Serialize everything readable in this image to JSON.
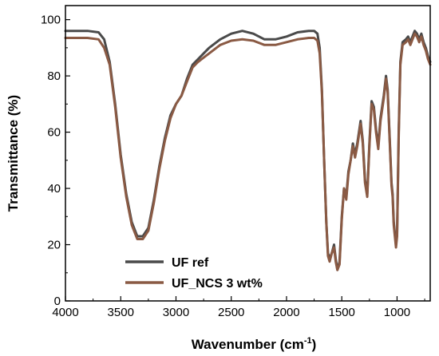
{
  "chart_data": {
    "type": "line",
    "xlabel_main": "Wavenumber (cm",
    "xlabel_sup": "-1",
    "xlabel_close": ")",
    "ylabel": "Transmittance (%)",
    "xlim": [
      4000,
      700
    ],
    "ylim": [
      0,
      105
    ],
    "x_reversed": true,
    "x_ticks": [
      4000,
      3500,
      3000,
      2500,
      2000,
      1500,
      1000
    ],
    "y_ticks": [
      0,
      20,
      40,
      60,
      80,
      100
    ],
    "legend_position": "bottom-left",
    "series": [
      {
        "name": "UF ref",
        "color": "#4a4a4a",
        "points": [
          [
            4000,
            96
          ],
          [
            3800,
            96
          ],
          [
            3700,
            95.5
          ],
          [
            3650,
            93
          ],
          [
            3600,
            85
          ],
          [
            3550,
            70
          ],
          [
            3500,
            52
          ],
          [
            3450,
            38
          ],
          [
            3400,
            28
          ],
          [
            3350,
            23
          ],
          [
            3300,
            23
          ],
          [
            3250,
            26
          ],
          [
            3200,
            36
          ],
          [
            3150,
            48
          ],
          [
            3100,
            58
          ],
          [
            3050,
            66
          ],
          [
            3000,
            70
          ],
          [
            2950,
            73
          ],
          [
            2900,
            79
          ],
          [
            2850,
            84
          ],
          [
            2800,
            86
          ],
          [
            2700,
            90
          ],
          [
            2600,
            93
          ],
          [
            2500,
            95
          ],
          [
            2400,
            96
          ],
          [
            2300,
            95
          ],
          [
            2200,
            93
          ],
          [
            2100,
            93
          ],
          [
            2000,
            94
          ],
          [
            1900,
            95.5
          ],
          [
            1800,
            96
          ],
          [
            1750,
            96
          ],
          [
            1720,
            95
          ],
          [
            1700,
            90
          ],
          [
            1680,
            75
          ],
          [
            1660,
            50
          ],
          [
            1640,
            28
          ],
          [
            1625,
            17
          ],
          [
            1610,
            15
          ],
          [
            1590,
            17
          ],
          [
            1570,
            20
          ],
          [
            1555,
            15
          ],
          [
            1540,
            11
          ],
          [
            1520,
            14
          ],
          [
            1500,
            30
          ],
          [
            1480,
            40
          ],
          [
            1460,
            37
          ],
          [
            1440,
            46
          ],
          [
            1420,
            50
          ],
          [
            1400,
            56
          ],
          [
            1380,
            52
          ],
          [
            1360,
            56
          ],
          [
            1330,
            64
          ],
          [
            1310,
            57
          ],
          [
            1290,
            43
          ],
          [
            1270,
            38
          ],
          [
            1250,
            56
          ],
          [
            1230,
            71
          ],
          [
            1210,
            69
          ],
          [
            1190,
            61
          ],
          [
            1170,
            55
          ],
          [
            1150,
            65
          ],
          [
            1120,
            73
          ],
          [
            1100,
            80
          ],
          [
            1085,
            75
          ],
          [
            1065,
            56
          ],
          [
            1050,
            42
          ],
          [
            1040,
            38
          ],
          [
            1030,
            28
          ],
          [
            1010,
            20
          ],
          [
            1000,
            24
          ],
          [
            985,
            60
          ],
          [
            970,
            85
          ],
          [
            950,
            92
          ],
          [
            920,
            93
          ],
          [
            900,
            94
          ],
          [
            880,
            92
          ],
          [
            860,
            94
          ],
          [
            840,
            96
          ],
          [
            820,
            95
          ],
          [
            800,
            93
          ],
          [
            780,
            95
          ],
          [
            760,
            92
          ],
          [
            740,
            90
          ],
          [
            720,
            87
          ],
          [
            700,
            85
          ]
        ]
      },
      {
        "name": "UF_NCS 3 wt%",
        "color": "#8a5a44",
        "points": [
          [
            4000,
            93.5
          ],
          [
            3800,
            93.5
          ],
          [
            3700,
            93
          ],
          [
            3650,
            90
          ],
          [
            3600,
            84
          ],
          [
            3550,
            69
          ],
          [
            3500,
            51
          ],
          [
            3450,
            37
          ],
          [
            3400,
            27
          ],
          [
            3350,
            22
          ],
          [
            3300,
            22
          ],
          [
            3250,
            25
          ],
          [
            3200,
            35
          ],
          [
            3150,
            47
          ],
          [
            3100,
            57
          ],
          [
            3050,
            65
          ],
          [
            3000,
            70
          ],
          [
            2950,
            73
          ],
          [
            2900,
            78
          ],
          [
            2850,
            83
          ],
          [
            2800,
            85
          ],
          [
            2700,
            88
          ],
          [
            2600,
            91
          ],
          [
            2500,
            92.5
          ],
          [
            2400,
            93
          ],
          [
            2300,
            92.5
          ],
          [
            2200,
            91
          ],
          [
            2100,
            91
          ],
          [
            2000,
            92
          ],
          [
            1900,
            93
          ],
          [
            1800,
            93.5
          ],
          [
            1750,
            93.5
          ],
          [
            1720,
            92.5
          ],
          [
            1700,
            88
          ],
          [
            1680,
            74
          ],
          [
            1660,
            50
          ],
          [
            1640,
            28
          ],
          [
            1625,
            16
          ],
          [
            1610,
            14
          ],
          [
            1590,
            17
          ],
          [
            1570,
            19
          ],
          [
            1555,
            14
          ],
          [
            1540,
            11
          ],
          [
            1520,
            13
          ],
          [
            1500,
            29
          ],
          [
            1480,
            40
          ],
          [
            1460,
            36
          ],
          [
            1440,
            45
          ],
          [
            1420,
            50
          ],
          [
            1400,
            55
          ],
          [
            1380,
            51
          ],
          [
            1360,
            55
          ],
          [
            1330,
            63
          ],
          [
            1310,
            56
          ],
          [
            1290,
            42
          ],
          [
            1270,
            37
          ],
          [
            1250,
            55
          ],
          [
            1230,
            70
          ],
          [
            1210,
            68
          ],
          [
            1190,
            60
          ],
          [
            1170,
            54
          ],
          [
            1150,
            64
          ],
          [
            1120,
            72
          ],
          [
            1100,
            79
          ],
          [
            1085,
            74
          ],
          [
            1065,
            55
          ],
          [
            1050,
            41
          ],
          [
            1040,
            37
          ],
          [
            1030,
            27
          ],
          [
            1010,
            19
          ],
          [
            1000,
            23
          ],
          [
            985,
            58
          ],
          [
            970,
            84
          ],
          [
            950,
            91
          ],
          [
            920,
            92
          ],
          [
            900,
            93
          ],
          [
            880,
            91
          ],
          [
            860,
            93
          ],
          [
            840,
            95
          ],
          [
            820,
            94
          ],
          [
            800,
            92
          ],
          [
            780,
            94
          ],
          [
            760,
            91
          ],
          [
            740,
            89
          ],
          [
            720,
            86
          ],
          [
            700,
            84
          ]
        ]
      }
    ]
  }
}
